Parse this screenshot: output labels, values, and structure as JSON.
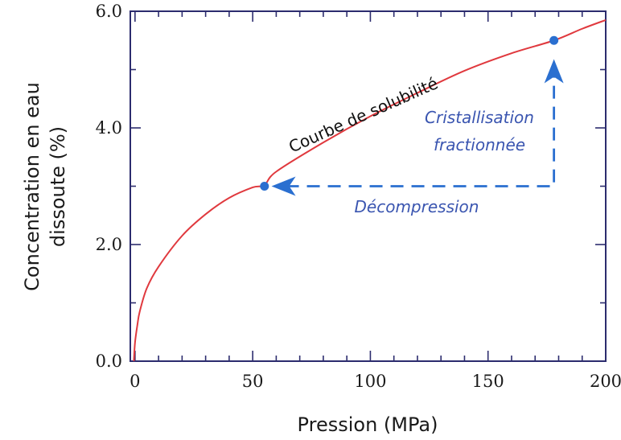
{
  "colors": {
    "frame": "#2c2c6e",
    "curve": "#e0393e",
    "accent": "#2a6fd0",
    "annotation_text": "#3a55b0"
  },
  "chart_data": {
    "type": "line",
    "xlabel": "Pression (MPa)",
    "ylabel_lines": [
      "Concentration en eau",
      "dissoute (%)"
    ],
    "xlim": [
      -2,
      200
    ],
    "ylim": [
      0,
      6
    ],
    "x_ticks": [
      0,
      50,
      100,
      150,
      200
    ],
    "x_tick_labels": [
      "0",
      "50",
      "100",
      "150",
      "200"
    ],
    "y_ticks": [
      0,
      2,
      4,
      6
    ],
    "y_tick_labels": [
      "0.0",
      "2.0",
      "4.0",
      "6.0"
    ],
    "x_minor_step": 10,
    "y_minor_step": 1,
    "series": [
      {
        "name": "Courbe de solubilité",
        "x": [
          -0.5,
          0,
          1,
          2,
          5,
          10,
          20,
          30,
          40,
          50,
          55,
          60,
          80,
          100,
          120,
          140,
          160,
          178,
          190,
          200
        ],
        "y": [
          0.0,
          0.32,
          0.62,
          0.85,
          1.25,
          1.62,
          2.15,
          2.52,
          2.8,
          2.98,
          3.02,
          3.25,
          3.75,
          4.2,
          4.6,
          4.98,
          5.28,
          5.5,
          5.7,
          5.85
        ]
      }
    ],
    "points": [
      {
        "x": 55,
        "y": 3.0
      },
      {
        "x": 178,
        "y": 5.5
      }
    ],
    "annotations": {
      "curve_label": "Courbe de solubilité",
      "crystallization_line1": "Cristallisation",
      "crystallization_line2": "fractionnée",
      "decompression": "Décompression"
    },
    "arrows": [
      {
        "label": "decompression",
        "from": [
          178,
          3.0
        ],
        "via": [
          178,
          3.0
        ],
        "to": [
          58,
          3.0
        ]
      },
      {
        "label": "crystallization",
        "from": [
          178,
          3.0
        ],
        "to": [
          178,
          5.18
        ]
      }
    ]
  }
}
